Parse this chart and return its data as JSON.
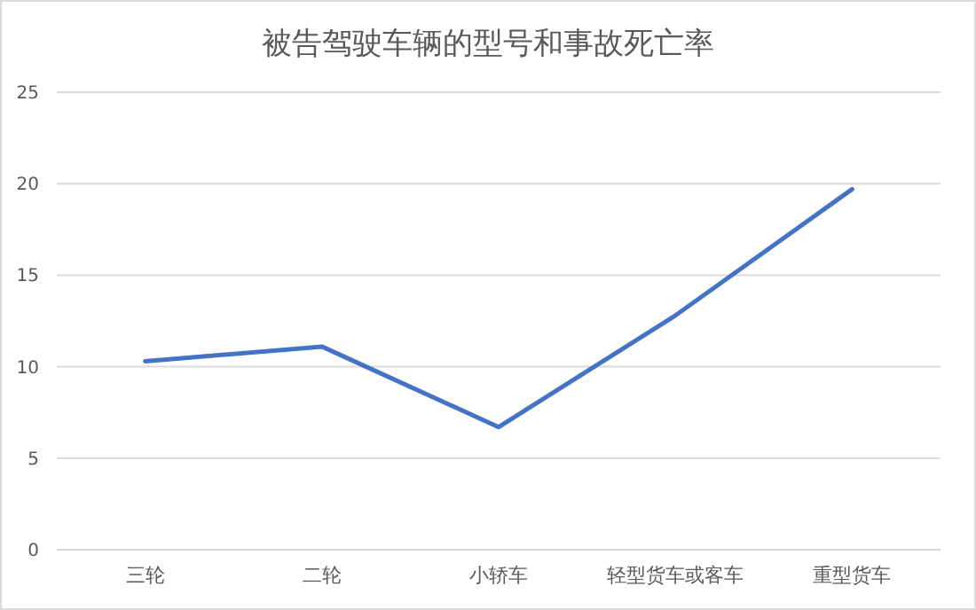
{
  "chart_data": {
    "type": "line",
    "title": "被告驾驶车辆的型号和事故死亡率",
    "categories": [
      "三轮",
      "二轮",
      "小轿车",
      "轻型货车或客车",
      "重型货车"
    ],
    "series": [
      {
        "color": "#4472c4",
        "values": [
          10.3,
          11.1,
          6.7,
          12.8,
          19.7
        ]
      }
    ],
    "ylim": [
      0,
      25
    ],
    "yticks": [
      0,
      5,
      10,
      15,
      20,
      25
    ],
    "grid": "y",
    "marker": "none",
    "line_style": "solid"
  }
}
